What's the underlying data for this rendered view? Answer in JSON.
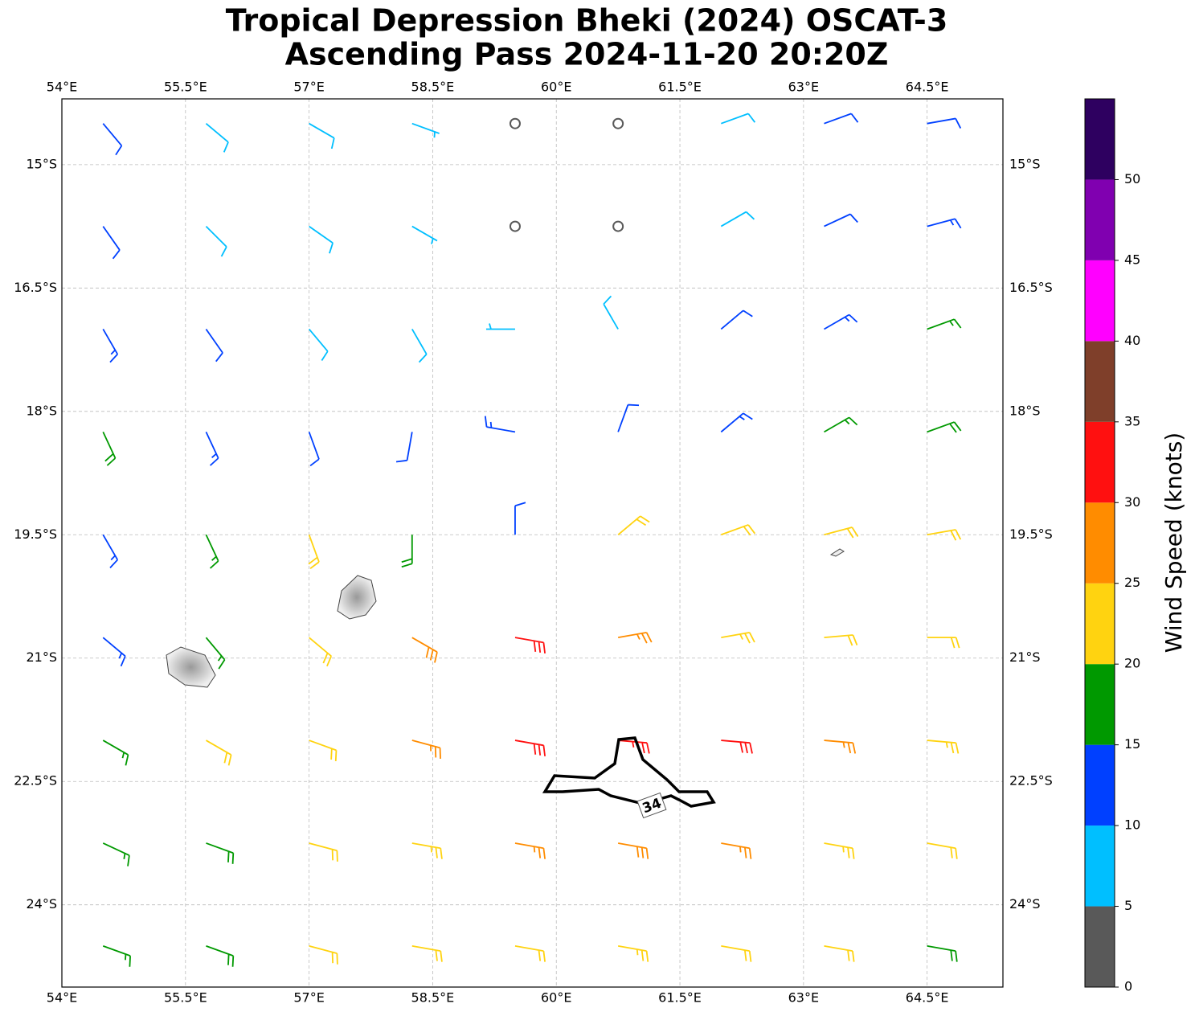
{
  "chart_data": {
    "type": "barbs",
    "title": [
      "Tropical Depression Bheki (2024) OSCAT-3",
      "Ascending Pass 2024-11-20 20:20Z"
    ],
    "xlim": [
      54,
      65.42
    ],
    "ylim": [
      -25.0,
      -14.2
    ],
    "xticks": [
      {
        "value": 54,
        "label": "54°E"
      },
      {
        "value": 55.5,
        "label": "55.5°E"
      },
      {
        "value": 57,
        "label": "57°E"
      },
      {
        "value": 58.5,
        "label": "58.5°E"
      },
      {
        "value": 60,
        "label": "60°E"
      },
      {
        "value": 61.5,
        "label": "61.5°E"
      },
      {
        "value": 63,
        "label": "63°E"
      },
      {
        "value": 64.5,
        "label": "64.5°E"
      }
    ],
    "yticks": [
      {
        "value": -15,
        "label": "15°S"
      },
      {
        "value": -16.5,
        "label": "16.5°S"
      },
      {
        "value": -18,
        "label": "18°S"
      },
      {
        "value": -19.5,
        "label": "19.5°S"
      },
      {
        "value": -21,
        "label": "21°S"
      },
      {
        "value": -22.5,
        "label": "22.5°S"
      },
      {
        "value": -24,
        "label": "24°S"
      }
    ],
    "grid": true,
    "lon": [
      54.5,
      55.75,
      57,
      58.25,
      59.5,
      60.75,
      62,
      63.25,
      64.5
    ],
    "lat": [
      -14.5,
      -15.75,
      -17,
      -18.25,
      -19.5,
      -20.75,
      -22,
      -23.25,
      -24.5
    ],
    "speed": [
      [
        12,
        8,
        8,
        7,
        3,
        3,
        8,
        10,
        12
      ],
      [
        12,
        9,
        8,
        6,
        3,
        3,
        8,
        12,
        13
      ],
      [
        13,
        12,
        9,
        8,
        7,
        9,
        12,
        14,
        17
      ],
      [
        18,
        14,
        12,
        12,
        13,
        12,
        14,
        17,
        18
      ],
      [
        13,
        17,
        22,
        18,
        12,
        22,
        22,
        22,
        22
      ],
      [
        13,
        17,
        22,
        28,
        30,
        27,
        24,
        22,
        22
      ],
      [
        17,
        20,
        22,
        27,
        30,
        33,
        32,
        27,
        23
      ],
      [
        17,
        18,
        22,
        23,
        25,
        28,
        27,
        23,
        22
      ],
      [
        17,
        18,
        22,
        22,
        22,
        23,
        22,
        20,
        18
      ]
    ],
    "direction": [
      [
        140,
        130,
        120,
        110,
        0,
        0,
        70,
        70,
        80
      ],
      [
        145,
        135,
        125,
        120,
        0,
        0,
        60,
        65,
        75
      ],
      [
        150,
        145,
        140,
        150,
        270,
        330,
        50,
        60,
        70
      ],
      [
        155,
        155,
        160,
        190,
        280,
        20,
        50,
        60,
        70
      ],
      [
        150,
        155,
        160,
        180,
        0,
        50,
        70,
        75,
        80
      ],
      [
        130,
        140,
        130,
        120,
        100,
        80,
        80,
        85,
        90
      ],
      [
        120,
        120,
        110,
        105,
        100,
        95,
        95,
        95,
        95
      ],
      [
        115,
        110,
        105,
        100,
        100,
        100,
        100,
        100,
        100
      ],
      [
        110,
        110,
        105,
        100,
        100,
        100,
        100,
        100,
        100
      ]
    ],
    "contour_label": 34,
    "colorbar": {
      "label": "Wind Speed (knots)",
      "bounds": [
        0,
        5,
        10,
        15,
        20,
        25,
        30,
        35,
        40,
        45,
        50,
        55
      ],
      "colors": [
        "#595959",
        "#00bfff",
        "#0040ff",
        "#009900",
        "#ffd310",
        "#ff8c00",
        "#ff1010",
        "#7f3f2a",
        "#ff00ff",
        "#8000b0",
        "#2e0060"
      ],
      "ticks": [
        0,
        5,
        10,
        15,
        20,
        25,
        30,
        35,
        40,
        45,
        50
      ]
    }
  }
}
